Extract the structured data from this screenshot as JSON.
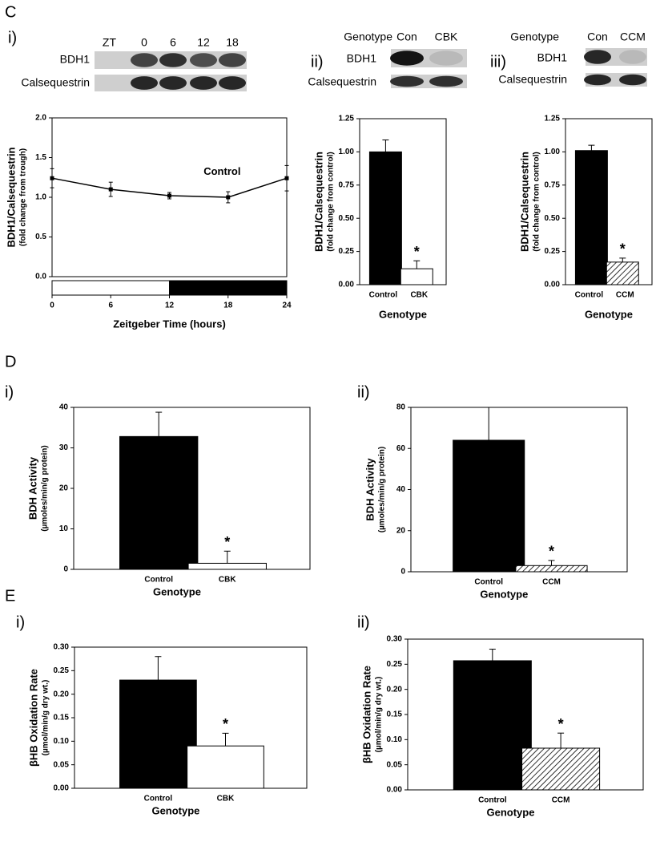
{
  "sections": [
    "C",
    "D",
    "E"
  ],
  "blots": [
    {
      "panel": "i)",
      "header": "ZT",
      "lanes": [
        "0",
        "6",
        "12",
        "18"
      ],
      "rows": [
        "BDH1",
        "Calsequestrin"
      ]
    },
    {
      "panel": "ii)",
      "header": "Genotype",
      "lanes": [
        "Con",
        "CBK"
      ],
      "rows": [
        "BDH1",
        "Calsequestrin"
      ]
    },
    {
      "panel": "iii)",
      "header": "Genotype",
      "lanes": [
        "Con",
        "CCM"
      ],
      "rows": [
        "BDH1",
        "Calsequestrin"
      ]
    }
  ],
  "chart_data": [
    {
      "type": "line",
      "x": [
        0,
        6,
        12,
        18,
        24
      ],
      "values": [
        1.24,
        1.1,
        1.02,
        1.0,
        1.24
      ],
      "errors": [
        0.12,
        0.09,
        0.04,
        0.07,
        0.16
      ],
      "xlim": [
        0,
        24
      ],
      "xticks": [
        0,
        6,
        12,
        18,
        24
      ],
      "ylim": [
        0,
        2.0
      ],
      "yticks": [
        {
          "value": 0,
          "label": "0.0"
        },
        0.5,
        {
          "value": 1,
          "label": "1.0"
        },
        1.5,
        {
          "value": 2,
          "label": "2.0"
        }
      ],
      "annotation": "Control",
      "xlabel": "Zeitgeber Time (hours)",
      "ylabel": [
        "BDH1/Calsequestrin",
        "(fold change from trough)"
      ],
      "light_dark": [
        {
          "start": 0,
          "end": 12,
          "color": "#ffffff"
        },
        {
          "start": 12,
          "end": 24,
          "color": "#000000"
        }
      ],
      "color": "#000000"
    },
    {
      "type": "bar",
      "categories": [
        "Control",
        "CBK"
      ],
      "values": [
        1.0,
        0.12
      ],
      "errors": [
        0.09,
        0.06
      ],
      "fills": [
        "#000000",
        "#ffffff"
      ],
      "hatched": [
        false,
        false
      ],
      "ylim": [
        0,
        1.25
      ],
      "yticks": [
        {
          "value": 0,
          "label": "0.00"
        },
        {
          "value": 0.25,
          "label": "0.25"
        },
        {
          "value": 0.5,
          "label": "0.50"
        },
        {
          "value": 0.75,
          "label": "0.75"
        },
        {
          "value": 1,
          "label": "1.00"
        },
        {
          "value": 1.25,
          "label": "1.25"
        }
      ],
      "annotation": "*",
      "xlabel": "Genotype",
      "ylabel": [
        "BDH1/Calsequestrin",
        "(fold change from control)"
      ]
    },
    {
      "type": "bar",
      "categories": [
        "Control",
        "CCM"
      ],
      "values": [
        1.01,
        0.17
      ],
      "errors": [
        0.04,
        0.03
      ],
      "fills": [
        "#000000",
        "#ffffff"
      ],
      "hatched": [
        false,
        true
      ],
      "ylim": [
        0,
        1.25
      ],
      "yticks": [
        {
          "value": 0,
          "label": "0.00"
        },
        {
          "value": 0.25,
          "label": "0.25"
        },
        {
          "value": 0.5,
          "label": "0.50"
        },
        {
          "value": 0.75,
          "label": "0.75"
        },
        {
          "value": 1,
          "label": "1.00"
        },
        {
          "value": 1.25,
          "label": "1.25"
        }
      ],
      "annotation": "*",
      "xlabel": "Genotype",
      "ylabel": [
        "BDH1/Calsequestrin",
        "(fold change from control)"
      ]
    },
    {
      "type": "bar",
      "panel": "i)",
      "categories": [
        "Control",
        "CBK"
      ],
      "values": [
        32.8,
        1.5
      ],
      "errors": [
        6,
        3
      ],
      "fills": [
        "#000000",
        "#ffffff"
      ],
      "hatched": [
        false,
        false
      ],
      "ylim": [
        0,
        40
      ],
      "yticks": [
        0,
        10,
        20,
        30,
        40
      ],
      "annotation": "*",
      "xlabel": "Genotype",
      "ylabel": [
        "BDH Activity",
        "(µmoles/min/g protein)"
      ]
    },
    {
      "type": "bar",
      "panel": "ii)",
      "categories": [
        "Control",
        "CCM"
      ],
      "values": [
        64,
        3
      ],
      "errors": [
        16,
        2.5
      ],
      "fills": [
        "#000000",
        "#ffffff"
      ],
      "hatched": [
        false,
        true
      ],
      "ylim": [
        0,
        80
      ],
      "yticks": [
        0,
        20,
        40,
        60,
        80
      ],
      "annotation": "*",
      "xlabel": "Genotype",
      "ylabel": [
        "BDH Activity",
        "(µmoles/min/g protein)"
      ]
    },
    {
      "type": "bar",
      "panel": "i)",
      "categories": [
        "Control",
        "CBK"
      ],
      "values": [
        0.23,
        0.09
      ],
      "errors": [
        0.05,
        0.027
      ],
      "fills": [
        "#000000",
        "#ffffff"
      ],
      "hatched": [
        false,
        false
      ],
      "ylim": [
        0,
        0.3
      ],
      "yticks": [
        {
          "value": 0,
          "label": "0.00"
        },
        {
          "value": 0.05,
          "label": "0.05"
        },
        {
          "value": 0.1,
          "label": "0.10"
        },
        {
          "value": 0.15,
          "label": "0.15"
        },
        {
          "value": 0.2,
          "label": "0.20"
        },
        {
          "value": 0.25,
          "label": "0.25"
        },
        {
          "value": 0.3,
          "label": "0.30"
        }
      ],
      "annotation": "*",
      "xlabel": "Genotype",
      "ylabel": [
        "βHB Oxidation Rate",
        "(µmol/min/g dry wt.)"
      ]
    },
    {
      "type": "bar",
      "panel": "ii)",
      "categories": [
        "Control",
        "CCM"
      ],
      "values": [
        0.257,
        0.083
      ],
      "errors": [
        0.023,
        0.03
      ],
      "fills": [
        "#000000",
        "#ffffff"
      ],
      "hatched": [
        false,
        true
      ],
      "ylim": [
        0,
        0.3
      ],
      "yticks": [
        {
          "value": 0,
          "label": "0.00"
        },
        {
          "value": 0.05,
          "label": "0.05"
        },
        {
          "value": 0.1,
          "label": "0.10"
        },
        {
          "value": 0.15,
          "label": "0.15"
        },
        {
          "value": 0.2,
          "label": "0.20"
        },
        {
          "value": 0.25,
          "label": "0.25"
        },
        {
          "value": 0.3,
          "label": "0.30"
        }
      ],
      "annotation": "*",
      "xlabel": "Genotype",
      "ylabel": [
        "βHB Oxidation Rate",
        "(µmol/min/g dry wt.)"
      ]
    }
  ]
}
